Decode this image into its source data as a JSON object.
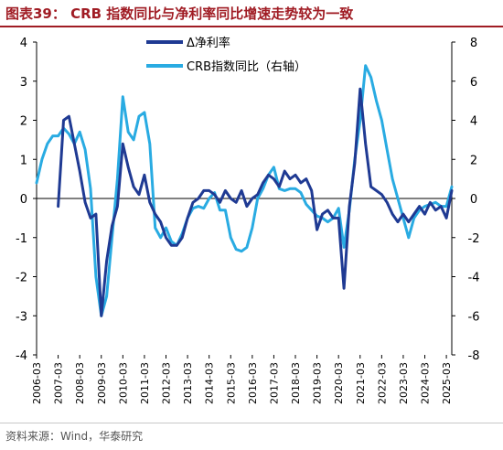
{
  "header": {
    "title": "图表39：  CRB 指数同比与净利率同比增速走势较为一致"
  },
  "source": {
    "text": "资料来源：Wind，华泰研究"
  },
  "colors": {
    "primary": "#1f3a93",
    "secondary": "#29abe2",
    "accent": "#a01c24"
  },
  "chart_data": {
    "type": "line",
    "xlabel": "",
    "ylabel": "",
    "legend_position": "top-center",
    "grid": false,
    "x_tick_labels": [
      "2006-03",
      "2007-03",
      "2008-03",
      "2009-03",
      "2010-03",
      "2011-03",
      "2012-03",
      "2013-03",
      "2014-03",
      "2015-03",
      "2016-03",
      "2017-03",
      "2018-03",
      "2019-03",
      "2020-03",
      "2021-03",
      "2022-03",
      "2023-03",
      "2024-03",
      "2025-03"
    ],
    "y_left": {
      "ticks": [
        4,
        3,
        2,
        1,
        0,
        -1,
        -2,
        -3,
        -4
      ],
      "range": [
        -4,
        4
      ]
    },
    "y_right": {
      "ticks": [
        8,
        6,
        4,
        2,
        0,
        -2,
        -4,
        -6,
        -8
      ],
      "range": [
        -8,
        8
      ]
    },
    "series": [
      {
        "name": "Δ净利率",
        "axis": "left",
        "color": "#1f3a93",
        "x": [
          2007.0,
          2007.25,
          2007.5,
          2007.75,
          2008.0,
          2008.25,
          2008.5,
          2008.75,
          2009.0,
          2009.25,
          2009.5,
          2009.75,
          2010.0,
          2010.25,
          2010.5,
          2010.75,
          2011.0,
          2011.25,
          2011.5,
          2011.75,
          2012.0,
          2012.25,
          2012.5,
          2012.75,
          2013.0,
          2013.25,
          2013.5,
          2013.75,
          2014.0,
          2014.25,
          2014.5,
          2014.75,
          2015.0,
          2015.25,
          2015.5,
          2015.75,
          2016.0,
          2016.25,
          2016.5,
          2016.75,
          2017.0,
          2017.25,
          2017.5,
          2017.75,
          2018.0,
          2018.25,
          2018.5,
          2018.75,
          2019.0,
          2019.25,
          2019.5,
          2019.75,
          2020.0,
          2020.25,
          2020.5,
          2020.75,
          2021.0,
          2021.25,
          2021.5,
          2021.75,
          2022.0,
          2022.25,
          2022.5,
          2022.75,
          2023.0,
          2023.25,
          2023.5,
          2023.75,
          2024.0,
          2024.25,
          2024.5,
          2024.75,
          2025.0,
          2025.25
        ],
        "values": [
          -0.2,
          2.0,
          2.1,
          1.4,
          0.7,
          -0.1,
          -0.5,
          -0.4,
          -3.0,
          -1.6,
          -0.7,
          -0.2,
          1.4,
          0.8,
          0.3,
          0.1,
          0.6,
          -0.1,
          -0.4,
          -0.6,
          -1.0,
          -1.2,
          -1.2,
          -1.0,
          -0.5,
          -0.1,
          0.0,
          0.2,
          0.2,
          0.1,
          -0.1,
          0.2,
          0.0,
          -0.1,
          0.2,
          -0.2,
          0.0,
          0.1,
          0.4,
          0.6,
          0.5,
          0.3,
          0.7,
          0.5,
          0.6,
          0.4,
          0.5,
          0.2,
          -0.8,
          -0.4,
          -0.3,
          -0.5,
          -0.5,
          -2.3,
          -0.2,
          0.9,
          2.8,
          1.4,
          0.3,
          0.2,
          0.1,
          -0.1,
          -0.4,
          -0.6,
          -0.4,
          -0.6,
          -0.4,
          -0.2,
          -0.4,
          -0.1,
          -0.3,
          -0.2,
          -0.5,
          0.2
        ]
      },
      {
        "name": "CRB指数同比（右轴）",
        "axis": "right",
        "color": "#29abe2",
        "x": [
          2006.0,
          2006.25,
          2006.5,
          2006.75,
          2007.0,
          2007.25,
          2007.5,
          2007.75,
          2008.0,
          2008.25,
          2008.5,
          2008.75,
          2009.0,
          2009.25,
          2009.5,
          2009.75,
          2010.0,
          2010.25,
          2010.5,
          2010.75,
          2011.0,
          2011.25,
          2011.5,
          2011.75,
          2012.0,
          2012.25,
          2012.5,
          2012.75,
          2013.0,
          2013.25,
          2013.5,
          2013.75,
          2014.0,
          2014.25,
          2014.5,
          2014.75,
          2015.0,
          2015.25,
          2015.5,
          2015.75,
          2016.0,
          2016.25,
          2016.5,
          2016.75,
          2017.0,
          2017.25,
          2017.5,
          2017.75,
          2018.0,
          2018.25,
          2018.5,
          2018.75,
          2019.0,
          2019.25,
          2019.5,
          2019.75,
          2020.0,
          2020.25,
          2020.5,
          2020.75,
          2021.0,
          2021.25,
          2021.5,
          2021.75,
          2022.0,
          2022.25,
          2022.5,
          2022.75,
          2023.0,
          2023.25,
          2023.5,
          2023.75,
          2024.0,
          2024.25,
          2024.5,
          2024.75,
          2025.0,
          2025.25
        ],
        "values": [
          0.8,
          2.0,
          2.8,
          3.2,
          3.2,
          3.6,
          3.3,
          2.8,
          3.4,
          2.5,
          0.5,
          -4.0,
          -6.0,
          -5.0,
          -2.0,
          1.0,
          5.2,
          3.4,
          3.0,
          4.2,
          4.4,
          2.8,
          -1.5,
          -2.0,
          -1.5,
          -2.2,
          -2.4,
          -1.8,
          -1.0,
          -0.5,
          -0.4,
          -0.5,
          0.0,
          0.3,
          -0.6,
          -0.6,
          -2.0,
          -2.6,
          -2.7,
          -2.5,
          -1.5,
          0.0,
          0.5,
          1.2,
          1.6,
          0.5,
          0.4,
          0.5,
          0.5,
          0.3,
          -0.3,
          -0.6,
          -0.9,
          -1.0,
          -1.2,
          -1.0,
          -0.5,
          -2.5,
          -0.6,
          2.0,
          4.0,
          6.8,
          6.2,
          5.0,
          4.0,
          2.5,
          1.0,
          0.0,
          -1.0,
          -2.0,
          -1.0,
          -0.6,
          -0.4,
          -0.3,
          -0.2,
          -0.4,
          -0.4,
          0.6
        ]
      }
    ]
  }
}
